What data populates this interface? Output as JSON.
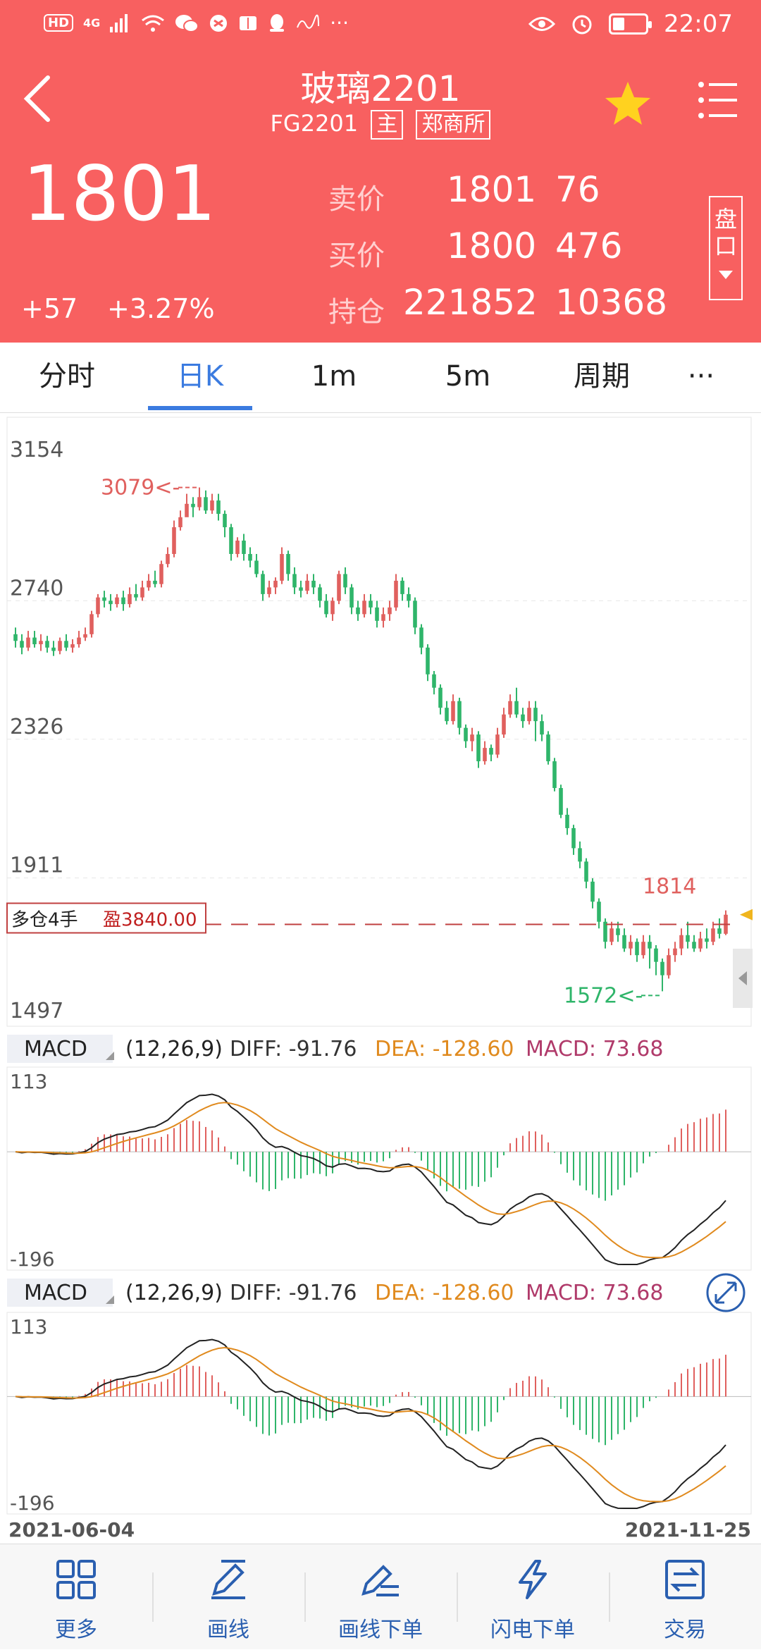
{
  "status_bar": {
    "left_badges": [
      "HD",
      "4G"
    ],
    "time": "22:07"
  },
  "header": {
    "title": "玻璃2201",
    "code": "FG2201",
    "tag_main": "主",
    "tag_exchange": "郑商所",
    "price": "1801",
    "change": "+57",
    "change_pct": "+3.27%",
    "quote": {
      "sell_label": "卖价",
      "sell_price": "1801",
      "sell_vol": "76",
      "buy_label": "买价",
      "buy_price": "1800",
      "buy_vol": "476",
      "oi_label": "持仓",
      "oi_value": "221852",
      "oi_change": "10368"
    },
    "pankou_label": [
      "盘",
      "口"
    ]
  },
  "tabs": [
    "分时",
    "日K",
    "1m",
    "5m",
    "周期",
    "···"
  ],
  "active_tab": 1,
  "colors": {
    "up": "#e0605e",
    "down": "#2fb56a",
    "brand": "#f86060",
    "accent": "#3b7be0",
    "dea": "#e08a1e",
    "macd_text": "#b03a6a"
  },
  "chart_data": [
    {
      "type": "candlestick",
      "y_ticks": [
        "3154",
        "2740",
        "2326",
        "1911",
        "1497"
      ],
      "ylim": [
        1497,
        3154
      ],
      "x_start": "2021-06-04",
      "x_end": "2021-11-25",
      "max_marker": "3079<-",
      "min_marker": "1572<-",
      "last_label": "1814",
      "position_label": "多仓4手",
      "profit_label": "盈3840.00",
      "position_price": 1810,
      "candles": [
        [
          2640,
          2620,
          2660,
          2600
        ],
        [
          2620,
          2600,
          2640,
          2580
        ],
        [
          2600,
          2630,
          2650,
          2590
        ],
        [
          2630,
          2610,
          2650,
          2600
        ],
        [
          2610,
          2620,
          2640,
          2590
        ],
        [
          2620,
          2600,
          2635,
          2585
        ],
        [
          2600,
          2590,
          2620,
          2575
        ],
        [
          2590,
          2620,
          2630,
          2580
        ],
        [
          2620,
          2600,
          2640,
          2590
        ],
        [
          2600,
          2610,
          2625,
          2585
        ],
        [
          2610,
          2630,
          2650,
          2600
        ],
        [
          2630,
          2640,
          2660,
          2620
        ],
        [
          2640,
          2700,
          2710,
          2630
        ],
        [
          2700,
          2750,
          2760,
          2690
        ],
        [
          2750,
          2740,
          2770,
          2720
        ],
        [
          2740,
          2730,
          2760,
          2710
        ],
        [
          2730,
          2750,
          2760,
          2720
        ],
        [
          2750,
          2730,
          2770,
          2710
        ],
        [
          2730,
          2760,
          2780,
          2720
        ],
        [
          2760,
          2750,
          2790,
          2740
        ],
        [
          2750,
          2780,
          2800,
          2740
        ],
        [
          2780,
          2800,
          2820,
          2770
        ],
        [
          2800,
          2790,
          2830,
          2780
        ],
        [
          2790,
          2850,
          2860,
          2780
        ],
        [
          2850,
          2880,
          2900,
          2840
        ],
        [
          2880,
          2960,
          2980,
          2870
        ],
        [
          2960,
          2990,
          3010,
          2950
        ],
        [
          2990,
          3030,
          3060,
          3000
        ],
        [
          3030,
          3020,
          3050,
          2990
        ],
        [
          3020,
          3050,
          3079,
          3010
        ],
        [
          3050,
          3010,
          3070,
          3000
        ],
        [
          3010,
          3040,
          3060,
          3000
        ],
        [
          3040,
          3000,
          3060,
          2980
        ],
        [
          3000,
          2960,
          3010,
          2930
        ],
        [
          2960,
          2880,
          2970,
          2860
        ],
        [
          2880,
          2920,
          2930,
          2870
        ],
        [
          2920,
          2880,
          2940,
          2860
        ],
        [
          2880,
          2860,
          2900,
          2840
        ],
        [
          2860,
          2820,
          2880,
          2810
        ],
        [
          2820,
          2760,
          2830,
          2740
        ],
        [
          2760,
          2780,
          2800,
          2750
        ],
        [
          2780,
          2800,
          2810,
          2760
        ],
        [
          2800,
          2880,
          2900,
          2790
        ],
        [
          2880,
          2820,
          2890,
          2800
        ],
        [
          2820,
          2780,
          2840,
          2760
        ],
        [
          2780,
          2770,
          2800,
          2750
        ],
        [
          2770,
          2800,
          2820,
          2760
        ],
        [
          2800,
          2780,
          2820,
          2760
        ],
        [
          2780,
          2740,
          2790,
          2720
        ],
        [
          2740,
          2700,
          2760,
          2690
        ],
        [
          2700,
          2740,
          2750,
          2680
        ],
        [
          2740,
          2820,
          2830,
          2730
        ],
        [
          2820,
          2780,
          2840,
          2760
        ],
        [
          2780,
          2720,
          2790,
          2700
        ],
        [
          2720,
          2700,
          2740,
          2680
        ],
        [
          2700,
          2740,
          2760,
          2690
        ],
        [
          2740,
          2720,
          2760,
          2700
        ],
        [
          2720,
          2680,
          2740,
          2660
        ],
        [
          2680,
          2700,
          2720,
          2660
        ],
        [
          2700,
          2720,
          2740,
          2680
        ],
        [
          2720,
          2800,
          2820,
          2710
        ],
        [
          2800,
          2760,
          2810,
          2740
        ],
        [
          2760,
          2740,
          2780,
          2720
        ],
        [
          2740,
          2660,
          2750,
          2640
        ],
        [
          2660,
          2600,
          2670,
          2580
        ],
        [
          2600,
          2520,
          2610,
          2500
        ],
        [
          2520,
          2480,
          2530,
          2460
        ],
        [
          2480,
          2420,
          2490,
          2400
        ],
        [
          2420,
          2380,
          2440,
          2370
        ],
        [
          2380,
          2440,
          2460,
          2370
        ],
        [
          2440,
          2360,
          2450,
          2340
        ],
        [
          2360,
          2320,
          2370,
          2300
        ],
        [
          2320,
          2340,
          2360,
          2290
        ],
        [
          2340,
          2260,
          2350,
          2240
        ],
        [
          2260,
          2300,
          2320,
          2250
        ],
        [
          2300,
          2280,
          2310,
          2260
        ],
        [
          2280,
          2340,
          2360,
          2270
        ],
        [
          2340,
          2400,
          2420,
          2330
        ],
        [
          2400,
          2440,
          2460,
          2390
        ],
        [
          2440,
          2400,
          2480,
          2390
        ],
        [
          2400,
          2380,
          2420,
          2360
        ],
        [
          2380,
          2420,
          2440,
          2370
        ],
        [
          2420,
          2380,
          2440,
          2320
        ],
        [
          2380,
          2340,
          2400,
          2320
        ],
        [
          2340,
          2260,
          2350,
          2250
        ],
        [
          2260,
          2180,
          2270,
          2170
        ],
        [
          2180,
          2100,
          2190,
          2090
        ],
        [
          2100,
          2060,
          2120,
          2040
        ],
        [
          2060,
          2000,
          2070,
          1980
        ],
        [
          2000,
          1960,
          2020,
          1940
        ],
        [
          1960,
          1900,
          1970,
          1880
        ],
        [
          1900,
          1840,
          1910,
          1820
        ],
        [
          1840,
          1780,
          1850,
          1760
        ],
        [
          1780,
          1720,
          1790,
          1700
        ],
        [
          1720,
          1760,
          1780,
          1710
        ],
        [
          1760,
          1740,
          1780,
          1720
        ],
        [
          1740,
          1700,
          1760,
          1690
        ],
        [
          1700,
          1720,
          1740,
          1680
        ],
        [
          1720,
          1680,
          1730,
          1660
        ],
        [
          1680,
          1720,
          1740,
          1670
        ],
        [
          1720,
          1700,
          1740,
          1640
        ],
        [
          1700,
          1660,
          1710,
          1620
        ],
        [
          1660,
          1620,
          1670,
          1572
        ],
        [
          1620,
          1680,
          1700,
          1610
        ],
        [
          1680,
          1700,
          1720,
          1660
        ],
        [
          1700,
          1740,
          1760,
          1680
        ],
        [
          1740,
          1720,
          1780,
          1700
        ],
        [
          1720,
          1700,
          1740,
          1690
        ],
        [
          1700,
          1730,
          1750,
          1690
        ],
        [
          1730,
          1720,
          1760,
          1700
        ],
        [
          1720,
          1760,
          1780,
          1710
        ],
        [
          1760,
          1744,
          1790,
          1730
        ],
        [
          1744,
          1801,
          1814,
          1740
        ]
      ]
    },
    {
      "type": "macd",
      "label": "MACD",
      "params": "(12,26,9)",
      "diff": "DIFF: -91.76",
      "dea": "DEA: -128.60",
      "macd": "MACD: 73.68",
      "y_ticks": [
        "113",
        "-196"
      ],
      "ylim": [
        -196,
        113
      ]
    },
    {
      "type": "macd",
      "label": "MACD",
      "params": "(12,26,9)",
      "diff": "DIFF: -91.76",
      "dea": "DEA: -128.60",
      "macd": "MACD: 73.68",
      "y_ticks": [
        "113",
        "-196"
      ],
      "ylim": [
        -196,
        113
      ]
    }
  ],
  "bottom_nav": [
    {
      "label": "更多",
      "icon": "grid-icon"
    },
    {
      "label": "画线",
      "icon": "pen-icon"
    },
    {
      "label": "画线下单",
      "icon": "pen-order-icon"
    },
    {
      "label": "闪电下单",
      "icon": "lightning-icon"
    },
    {
      "label": "交易",
      "icon": "trade-icon"
    }
  ]
}
